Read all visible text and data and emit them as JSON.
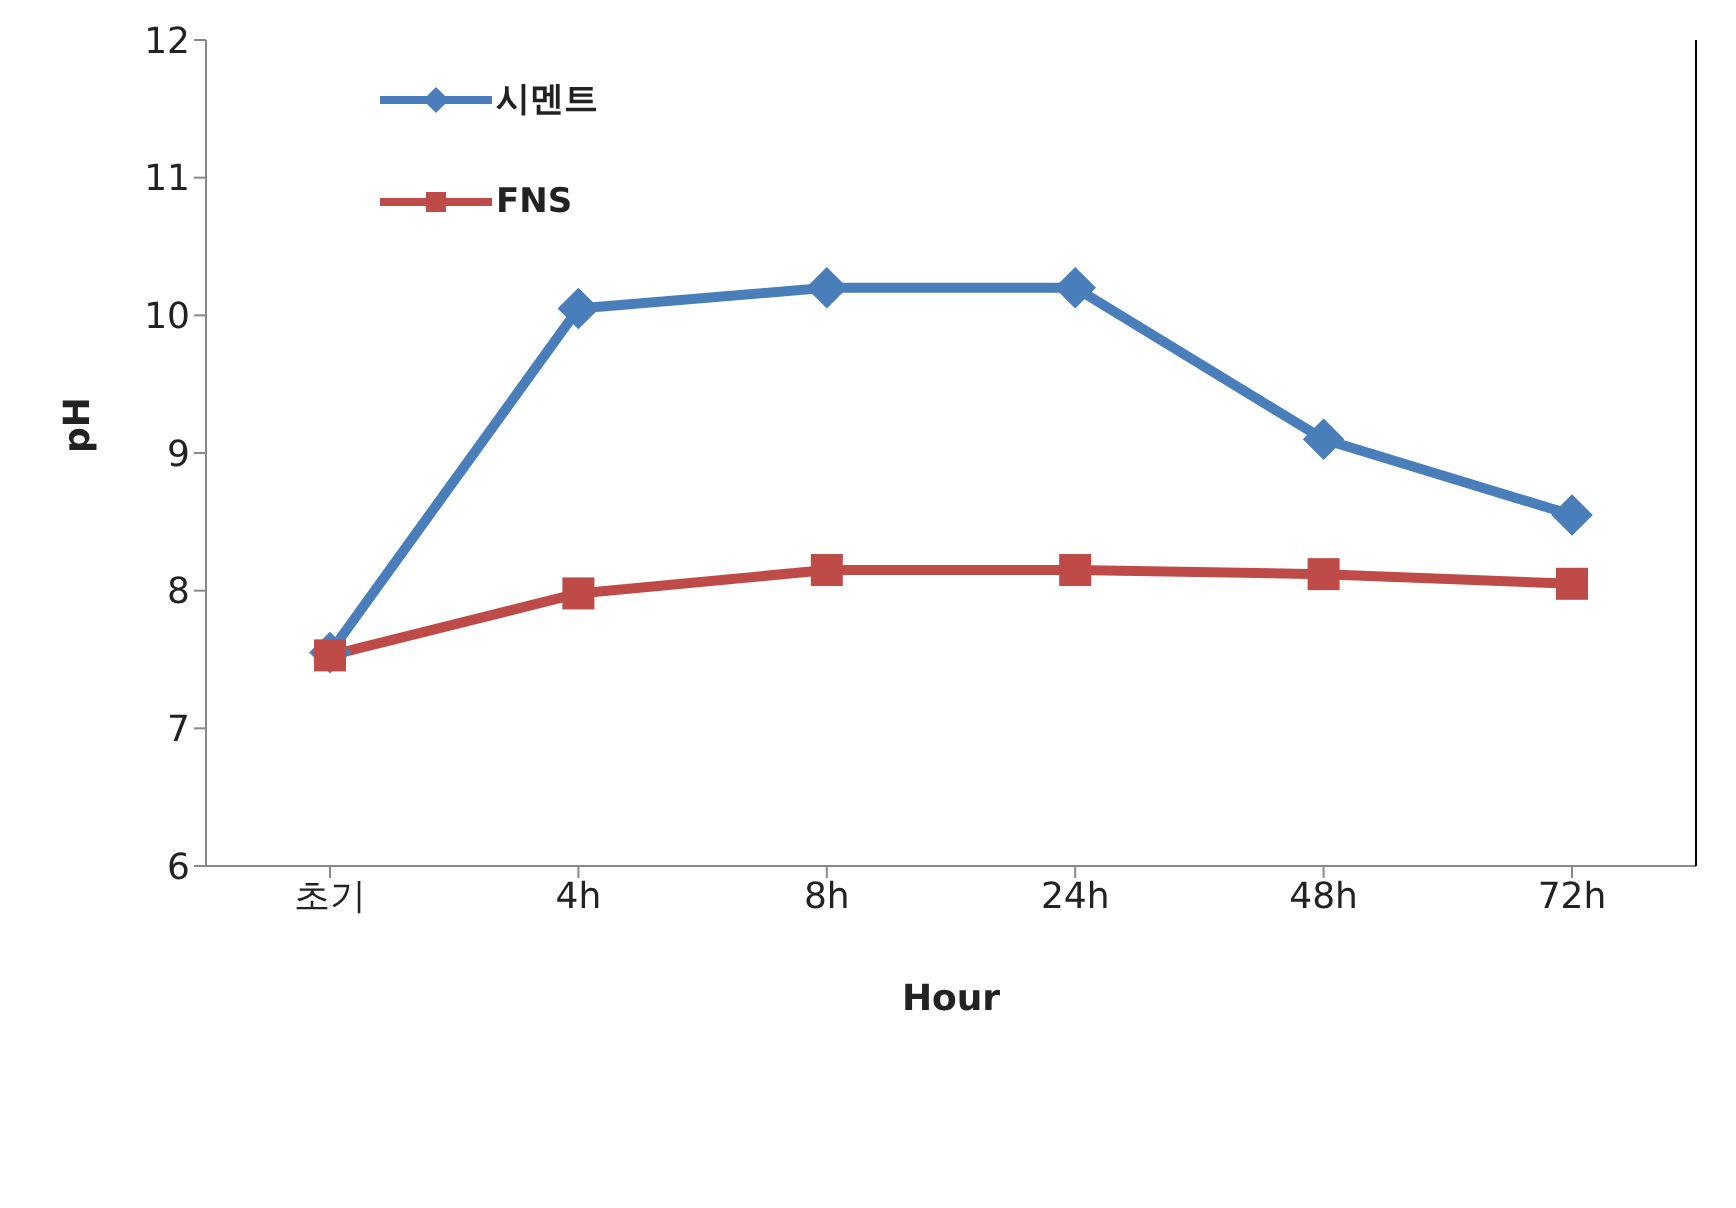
{
  "chart_data": {
    "type": "line",
    "xlabel": "Hour",
    "ylabel": "pH",
    "categories": [
      "초기",
      "4h",
      "8h",
      "24h",
      "48h",
      "72h"
    ],
    "series": [
      {
        "name": "시멘트",
        "color": "#4a7ebb",
        "marker": "diamond",
        "values": [
          7.55,
          10.05,
          10.2,
          10.2,
          9.1,
          8.55
        ]
      },
      {
        "name": "FNS",
        "color": "#be4b48",
        "marker": "square",
        "values": [
          7.53,
          7.98,
          8.15,
          8.15,
          8.12,
          8.05
        ]
      }
    ],
    "ylim": [
      6,
      12
    ],
    "yticks": [
      6,
      7,
      8,
      9,
      10,
      11,
      12
    ],
    "legend": "top left",
    "line_style": "solid"
  }
}
